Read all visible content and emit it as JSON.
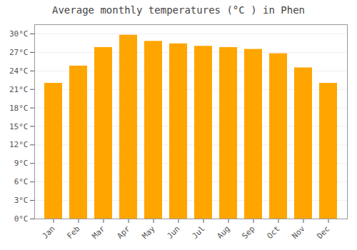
{
  "chart_data": {
    "type": "bar",
    "title": "Average monthly temperatures (°C ) in Phen",
    "categories": [
      "Jan",
      "Feb",
      "Mar",
      "Apr",
      "May",
      "Jun",
      "Jul",
      "Aug",
      "Sep",
      "Oct",
      "Nov",
      "Dec"
    ],
    "values": [
      22.0,
      24.8,
      27.8,
      29.8,
      28.8,
      28.4,
      28.0,
      27.8,
      27.5,
      26.8,
      24.5,
      22.0
    ],
    "color": "#FFA500",
    "ylim": [
      0,
      31.5
    ],
    "yticks": [
      {
        "value": 0,
        "label": "0°C"
      },
      {
        "value": 3,
        "label": "3°C"
      },
      {
        "value": 6,
        "label": "6°C"
      },
      {
        "value": 9,
        "label": "9°C"
      },
      {
        "value": 12,
        "label": "12°C"
      },
      {
        "value": 15,
        "label": "15°C"
      },
      {
        "value": 18,
        "label": "18°C"
      },
      {
        "value": 21,
        "label": "21°C"
      },
      {
        "value": 24,
        "label": "24°C"
      },
      {
        "value": 27,
        "label": "27°C"
      },
      {
        "value": 30,
        "label": "30°C"
      }
    ],
    "grid": true
  }
}
